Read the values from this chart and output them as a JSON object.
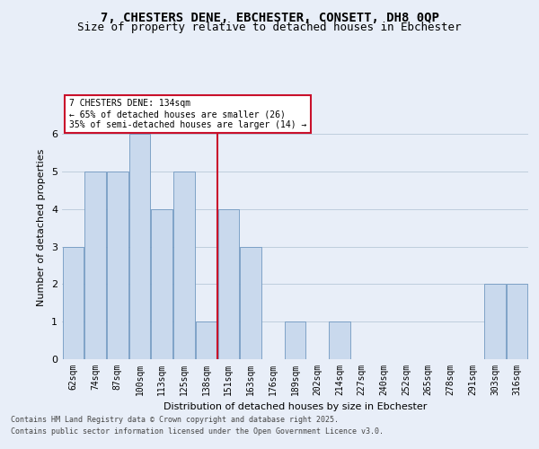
{
  "title1": "7, CHESTERS DENE, EBCHESTER, CONSETT, DH8 0QP",
  "title2": "Size of property relative to detached houses in Ebchester",
  "xlabel": "Distribution of detached houses by size in Ebchester",
  "ylabel": "Number of detached properties",
  "categories": [
    "62sqm",
    "74sqm",
    "87sqm",
    "100sqm",
    "113sqm",
    "125sqm",
    "138sqm",
    "151sqm",
    "163sqm",
    "176sqm",
    "189sqm",
    "202sqm",
    "214sqm",
    "227sqm",
    "240sqm",
    "252sqm",
    "265sqm",
    "278sqm",
    "291sqm",
    "303sqm",
    "316sqm"
  ],
  "values": [
    3,
    5,
    5,
    6,
    4,
    5,
    1,
    4,
    3,
    0,
    1,
    0,
    1,
    0,
    0,
    0,
    0,
    0,
    0,
    2,
    2
  ],
  "bar_color": "#c9d9ed",
  "bar_edge_color": "#7098c0",
  "highlight_color": "#c9102b",
  "vline_index": 6,
  "annotation_title": "7 CHESTERS DENE: 134sqm",
  "annotation_line1": "← 65% of detached houses are smaller (26)",
  "annotation_line2": "35% of semi-detached houses are larger (14) →",
  "ylim": [
    0,
    7
  ],
  "yticks": [
    0,
    1,
    2,
    3,
    4,
    5,
    6
  ],
  "footer1": "Contains HM Land Registry data © Crown copyright and database right 2025.",
  "footer2": "Contains public sector information licensed under the Open Government Licence v3.0.",
  "bg_color": "#e8eef8",
  "title_fontsize": 10,
  "subtitle_fontsize": 9,
  "axis_label_fontsize": 8,
  "tick_fontsize": 7,
  "annotation_fontsize": 7,
  "footer_fontsize": 6
}
